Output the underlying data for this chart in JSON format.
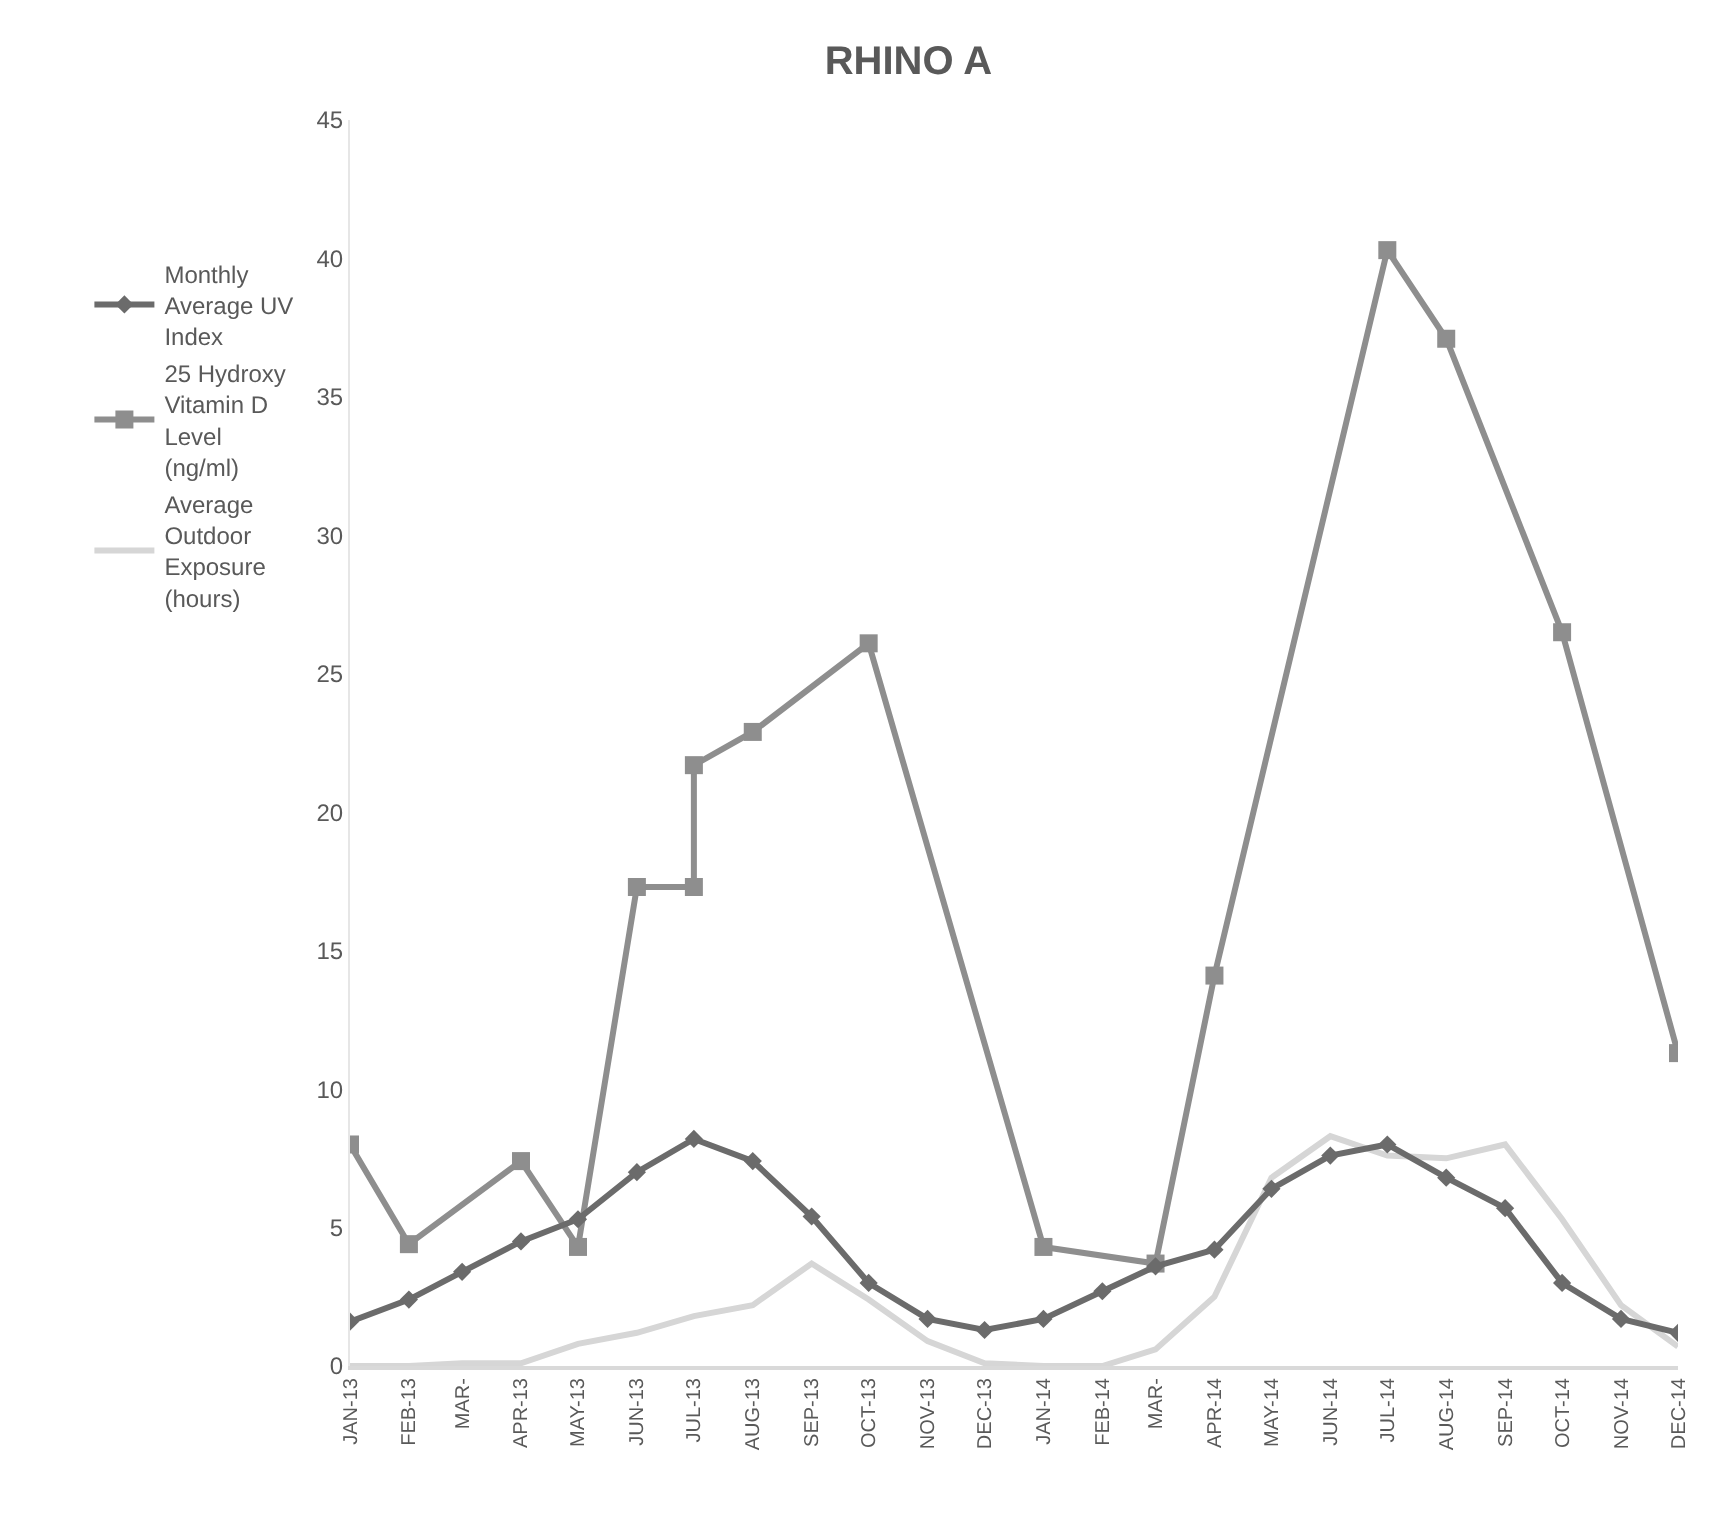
{
  "chart_data": {
    "type": "line",
    "title": "RHINO A",
    "x": [
      "2013-01",
      "2013-02",
      "2013-03",
      "2013-04",
      "2013-05",
      "2013-06",
      "2013-07",
      "2013-08",
      "2013-09",
      "2013-10",
      "2013-11",
      "2013-12",
      "2014-01",
      "2014-02",
      "2014-03",
      "2014-04",
      "2014-05",
      "2014-06",
      "2014-07",
      "2014-08",
      "2014-09",
      "2014-10",
      "2014-11",
      "2014-12"
    ],
    "series": [
      {
        "name": "Monthly Average UV Index",
        "color": "#6b6b6b",
        "marker": "diamond",
        "values": [
          1.6,
          2.4,
          3.4,
          4.5,
          5.3,
          7.0,
          8.2,
          7.4,
          5.4,
          3.0,
          1.7,
          1.3,
          1.7,
          2.7,
          3.6,
          4.2,
          6.4,
          7.6,
          8.0,
          6.8,
          5.7,
          3.0,
          1.7,
          1.2
        ]
      },
      {
        "name": "25 Hydroxy Vitamin D Level (ng/ml)",
        "color": "#8e8e8e",
        "marker": "square",
        "x": [
          "2013-01",
          "2013-02",
          "2013-04",
          "2013-05",
          "2013-06",
          "2013-07",
          "2013-07",
          "2013-08",
          "2013-10",
          "2014-01",
          "2014-03",
          "2014-04",
          "2014-07",
          "2014-08",
          "2014-10",
          "2014-12"
        ],
        "values": [
          8.0,
          4.4,
          7.4,
          4.3,
          17.3,
          17.3,
          21.7,
          22.9,
          26.1,
          4.3,
          3.7,
          14.1,
          40.3,
          37.1,
          26.5,
          11.3
        ]
      },
      {
        "name": "Average Outdoor Exposure (hours)",
        "color": "#d6d6d6",
        "marker": "none",
        "values": [
          0,
          0,
          0.1,
          0.1,
          0.8,
          1.2,
          1.8,
          2.2,
          3.7,
          2.4,
          0.9,
          0.1,
          0,
          0,
          0.6,
          2.5,
          6.8,
          8.3,
          7.6,
          7.5,
          8.0,
          5.3,
          2.2,
          0.7
        ]
      }
    ],
    "xlim": [
      "2013-01",
      "2014-12"
    ],
    "xticks": [
      {
        "value": "2013-01",
        "label": "JAN-13"
      },
      {
        "value": "2013-02",
        "label": "FEB-13"
      },
      {
        "value": "2013-03",
        "label": "MAR-"
      },
      {
        "value": "2013-04",
        "label": "APR-13"
      },
      {
        "value": "2013-05",
        "label": "MAY-13"
      },
      {
        "value": "2013-06",
        "label": "JUN-13"
      },
      {
        "value": "2013-07",
        "label": "JUL-13"
      },
      {
        "value": "2013-08",
        "label": "AUG-13"
      },
      {
        "value": "2013-09",
        "label": "SEP-13"
      },
      {
        "value": "2013-10",
        "label": "OCT-13"
      },
      {
        "value": "2013-11",
        "label": "NOV-13"
      },
      {
        "value": "2013-12",
        "label": "DEC-13"
      },
      {
        "value": "2014-01",
        "label": "JAN-14"
      },
      {
        "value": "2014-02",
        "label": "FEB-14"
      },
      {
        "value": "2014-03",
        "label": "MAR-"
      },
      {
        "value": "2014-04",
        "label": "APR-14"
      },
      {
        "value": "2014-05",
        "label": "MAY-14"
      },
      {
        "value": "2014-06",
        "label": "JUN-14"
      },
      {
        "value": "2014-07",
        "label": "JUL-14"
      },
      {
        "value": "2014-08",
        "label": "AUG-14"
      },
      {
        "value": "2014-09",
        "label": "SEP-14"
      },
      {
        "value": "2014-10",
        "label": "OCT-14"
      },
      {
        "value": "2014-11",
        "label": "NOV-14"
      },
      {
        "value": "2014-12",
        "label": "DEC-14"
      }
    ],
    "ylim": [
      0,
      45
    ],
    "yticks": [
      0,
      5,
      10,
      15,
      20,
      25,
      30,
      35,
      40,
      45
    ],
    "grid": false,
    "legend": "left",
    "line_style": "solid"
  }
}
